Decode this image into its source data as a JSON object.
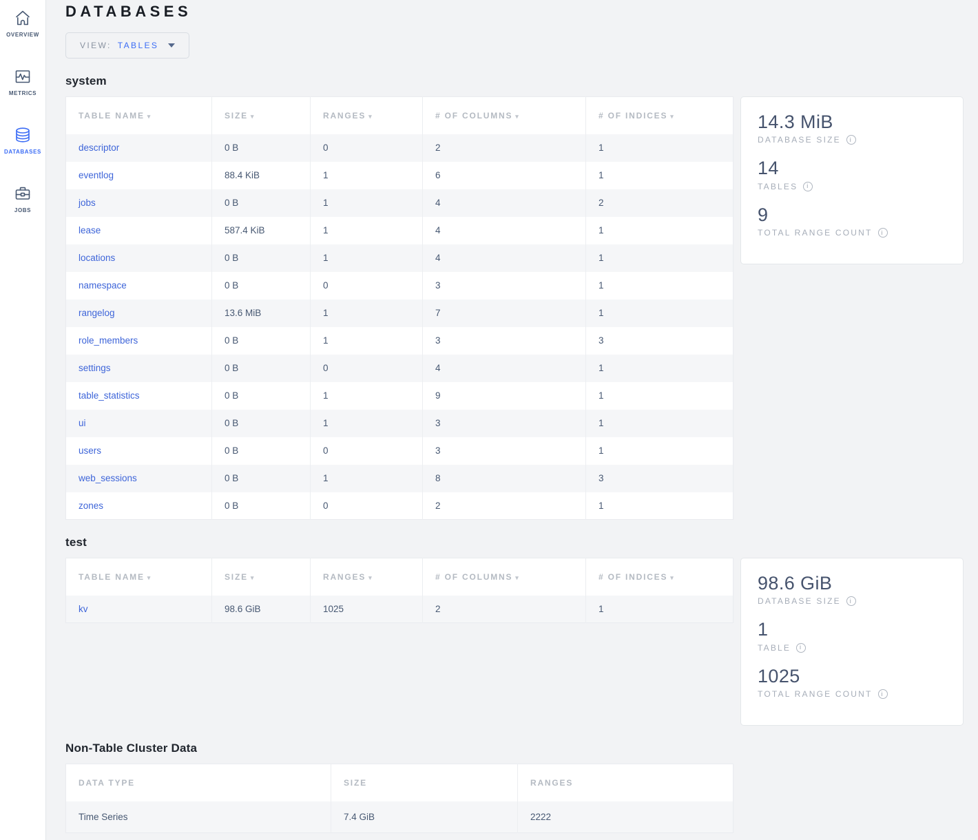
{
  "colors": {
    "accent": "#3b6cf5",
    "link": "#3e65d9",
    "page_bg": "#f2f3f5",
    "stat_text": "#46536d",
    "header_text": "#b4bac2"
  },
  "sidebar": {
    "items": [
      {
        "label": "OVERVIEW",
        "icon": "home-icon",
        "active": false
      },
      {
        "label": "METRICS",
        "icon": "metrics-icon",
        "active": false
      },
      {
        "label": "DATABASES",
        "icon": "database-icon",
        "active": true
      },
      {
        "label": "JOBS",
        "icon": "briefcase-icon",
        "active": false
      }
    ]
  },
  "header": {
    "title": "DATABASES",
    "view_label": "VIEW:",
    "view_value": "TABLES"
  },
  "databases": [
    {
      "name": "system",
      "columns": [
        {
          "label": "TABLE NAME"
        },
        {
          "label": "SIZE"
        },
        {
          "label": "RANGES"
        },
        {
          "label": "# OF COLUMNS"
        },
        {
          "label": "# OF INDICES"
        }
      ],
      "rows": [
        {
          "link": true,
          "cells": [
            "descriptor",
            "0 B",
            "0",
            "2",
            "1"
          ]
        },
        {
          "link": true,
          "cells": [
            "eventlog",
            "88.4 KiB",
            "1",
            "6",
            "1"
          ]
        },
        {
          "link": true,
          "cells": [
            "jobs",
            "0 B",
            "1",
            "4",
            "2"
          ]
        },
        {
          "link": true,
          "cells": [
            "lease",
            "587.4 KiB",
            "1",
            "4",
            "1"
          ]
        },
        {
          "link": true,
          "cells": [
            "locations",
            "0 B",
            "1",
            "4",
            "1"
          ]
        },
        {
          "link": true,
          "cells": [
            "namespace",
            "0 B",
            "0",
            "3",
            "1"
          ]
        },
        {
          "link": true,
          "cells": [
            "rangelog",
            "13.6 MiB",
            "1",
            "7",
            "1"
          ]
        },
        {
          "link": true,
          "cells": [
            "role_members",
            "0 B",
            "1",
            "3",
            "3"
          ]
        },
        {
          "link": true,
          "cells": [
            "settings",
            "0 B",
            "0",
            "4",
            "1"
          ]
        },
        {
          "link": true,
          "cells": [
            "table_statistics",
            "0 B",
            "1",
            "9",
            "1"
          ]
        },
        {
          "link": true,
          "cells": [
            "ui",
            "0 B",
            "1",
            "3",
            "1"
          ]
        },
        {
          "link": true,
          "cells": [
            "users",
            "0 B",
            "0",
            "3",
            "1"
          ]
        },
        {
          "link": true,
          "cells": [
            "web_sessions",
            "0 B",
            "1",
            "8",
            "3"
          ]
        },
        {
          "link": true,
          "cells": [
            "zones",
            "0 B",
            "0",
            "2",
            "1"
          ]
        }
      ],
      "summary": [
        {
          "value": "14.3 MiB",
          "label": "DATABASE SIZE"
        },
        {
          "value": "14",
          "label": "TABLES"
        },
        {
          "value": "9",
          "label": "TOTAL RANGE COUNT"
        }
      ]
    },
    {
      "name": "test",
      "columns": [
        {
          "label": "TABLE NAME"
        },
        {
          "label": "SIZE"
        },
        {
          "label": "RANGES"
        },
        {
          "label": "# OF COLUMNS"
        },
        {
          "label": "# OF INDICES"
        }
      ],
      "rows": [
        {
          "link": true,
          "cells": [
            "kv",
            "98.6 GiB",
            "1025",
            "2",
            "1"
          ]
        }
      ],
      "summary": [
        {
          "value": "98.6 GiB",
          "label": "DATABASE SIZE"
        },
        {
          "value": "1",
          "label": "TABLE"
        },
        {
          "value": "1025",
          "label": "TOTAL RANGE COUNT"
        }
      ]
    }
  ],
  "non_table": {
    "title": "Non-Table Cluster Data",
    "columns": [
      "DATA TYPE",
      "SIZE",
      "RANGES"
    ],
    "rows": [
      [
        "Time Series",
        "7.4 GiB",
        "2222"
      ]
    ]
  }
}
